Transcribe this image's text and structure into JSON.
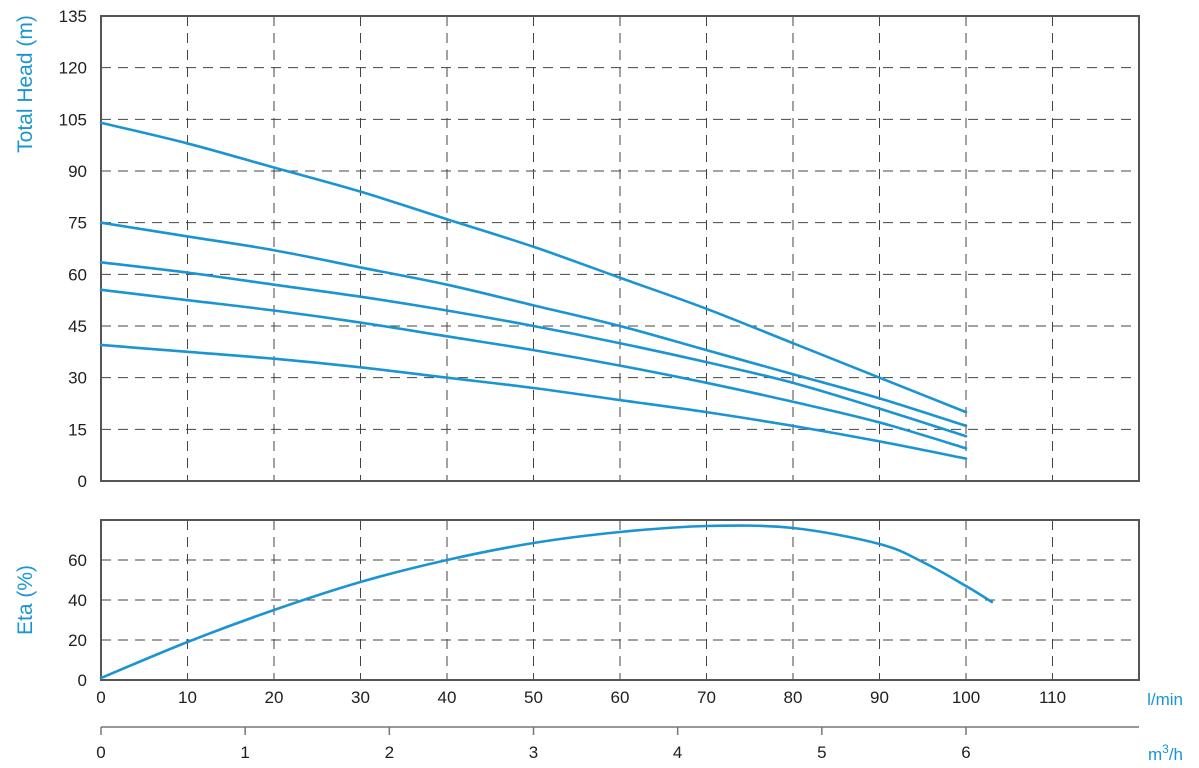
{
  "chart_data": [
    {
      "type": "line",
      "ylabel": "Total Head (m)",
      "ylim": [
        0,
        135
      ],
      "yticks": [
        "0",
        "15",
        "30",
        "45",
        "60",
        "75",
        "90",
        "105",
        "120",
        "135"
      ],
      "xlim": [
        0,
        120
      ],
      "xgrid": [
        10,
        20,
        30,
        40,
        50,
        60,
        70,
        80,
        90,
        100,
        110
      ],
      "grid": true,
      "color": "#1b95d2",
      "series": [
        {
          "x": [
            0,
            10,
            20,
            30,
            40,
            50,
            60,
            70,
            80,
            90,
            100
          ],
          "y": [
            104,
            98,
            91,
            84,
            76,
            68,
            59,
            50,
            40,
            30,
            20
          ]
        },
        {
          "x": [
            0,
            10,
            20,
            30,
            40,
            50,
            60,
            70,
            80,
            90,
            100
          ],
          "y": [
            75,
            71,
            67,
            62,
            57,
            51,
            45,
            38,
            31,
            24,
            16
          ]
        },
        {
          "x": [
            0,
            10,
            20,
            30,
            40,
            50,
            60,
            70,
            80,
            90,
            100
          ],
          "y": [
            63.5,
            60.5,
            57,
            53.5,
            49.5,
            45,
            40,
            34.5,
            28.5,
            21,
            13
          ]
        },
        {
          "x": [
            0,
            10,
            20,
            30,
            40,
            50,
            60,
            70,
            80,
            90,
            100
          ],
          "y": [
            55.5,
            52.5,
            49.5,
            46,
            42,
            38,
            33.5,
            28.5,
            23,
            17,
            9.5
          ]
        },
        {
          "x": [
            0,
            10,
            20,
            30,
            40,
            50,
            60,
            70,
            80,
            90,
            100
          ],
          "y": [
            39.5,
            37.5,
            35.5,
            33,
            30,
            27,
            23.5,
            20,
            16,
            11.5,
            6.5
          ]
        }
      ]
    },
    {
      "type": "line",
      "ylabel": "Eta (%)",
      "ylim": [
        0,
        80
      ],
      "yticks": [
        "0",
        "20",
        "40",
        "60"
      ],
      "xlim": [
        0,
        120
      ],
      "xgrid": [
        10,
        20,
        30,
        40,
        50,
        60,
        70,
        80,
        90,
        100,
        110
      ],
      "grid": true,
      "color": "#1b95d2",
      "series": [
        {
          "x": [
            0,
            10,
            20,
            30,
            40,
            50,
            60,
            70,
            80,
            90,
            95,
            100,
            103
          ],
          "y": [
            1,
            19,
            35,
            49,
            60,
            68.5,
            74,
            77,
            76,
            68,
            59,
            47,
            39
          ]
        }
      ]
    }
  ],
  "x_axis_lpm": {
    "unit": "l/min",
    "range": [
      0,
      120
    ],
    "ticks": [
      {
        "v": 0,
        "label": "0"
      },
      {
        "v": 10,
        "label": "10"
      },
      {
        "v": 20,
        "label": "20"
      },
      {
        "v": 30,
        "label": "30"
      },
      {
        "v": 40,
        "label": "40"
      },
      {
        "v": 50,
        "label": "50"
      },
      {
        "v": 60,
        "label": "60"
      },
      {
        "v": 70,
        "label": "70"
      },
      {
        "v": 80,
        "label": "80"
      },
      {
        "v": 90,
        "label": "90"
      },
      {
        "v": 100,
        "label": "100"
      },
      {
        "v": 110,
        "label": "110"
      }
    ]
  },
  "x_axis_m3h": {
    "unit_base": "m",
    "unit_sup": "3",
    "unit_tail": "/h",
    "range": [
      0,
      7.2
    ],
    "ticks": [
      {
        "v": 0,
        "label": "0"
      },
      {
        "v": 1,
        "label": "1"
      },
      {
        "v": 2,
        "label": "2"
      },
      {
        "v": 3,
        "label": "3"
      },
      {
        "v": 4,
        "label": "4"
      },
      {
        "v": 5,
        "label": "5"
      },
      {
        "v": 6,
        "label": "6"
      }
    ]
  }
}
